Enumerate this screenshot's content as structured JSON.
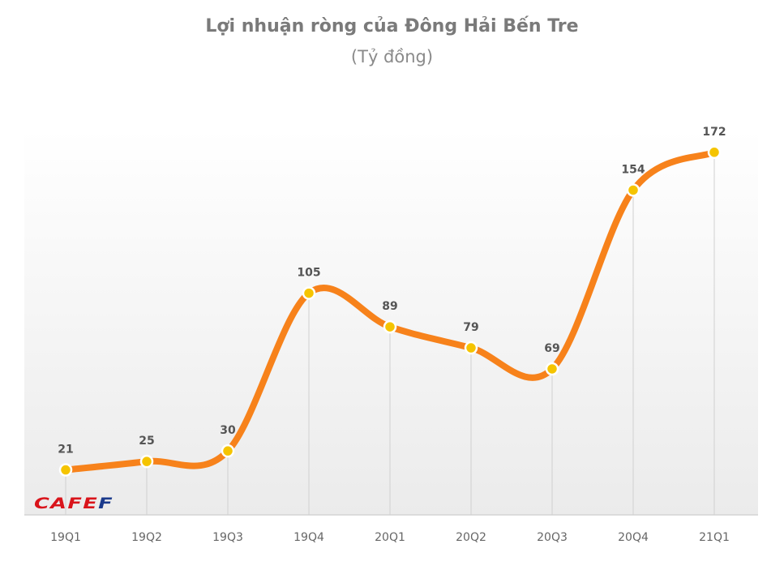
{
  "chart_data": {
    "type": "line",
    "title": "Lợi nhuận ròng của Đông Hải Bến Tre",
    "subtitle": "(Tỷ đồng)",
    "categories": [
      "19Q1",
      "19Q2",
      "19Q3",
      "19Q4",
      "20Q1",
      "20Q2",
      "20Q3",
      "20Q4",
      "21Q1"
    ],
    "values": [
      21,
      25,
      30,
      105,
      89,
      79,
      69,
      154,
      172
    ],
    "data_labels": [
      "21",
      "25",
      "30",
      "105",
      "89",
      "79",
      "69",
      "154",
      "172"
    ],
    "ylim": [
      0,
      180
    ],
    "smooth": true,
    "grid": false,
    "line_color": "#f7821b",
    "marker_color": "#f5c400"
  },
  "logo": {
    "text_red": "CAFE",
    "text_blue": "F"
  }
}
